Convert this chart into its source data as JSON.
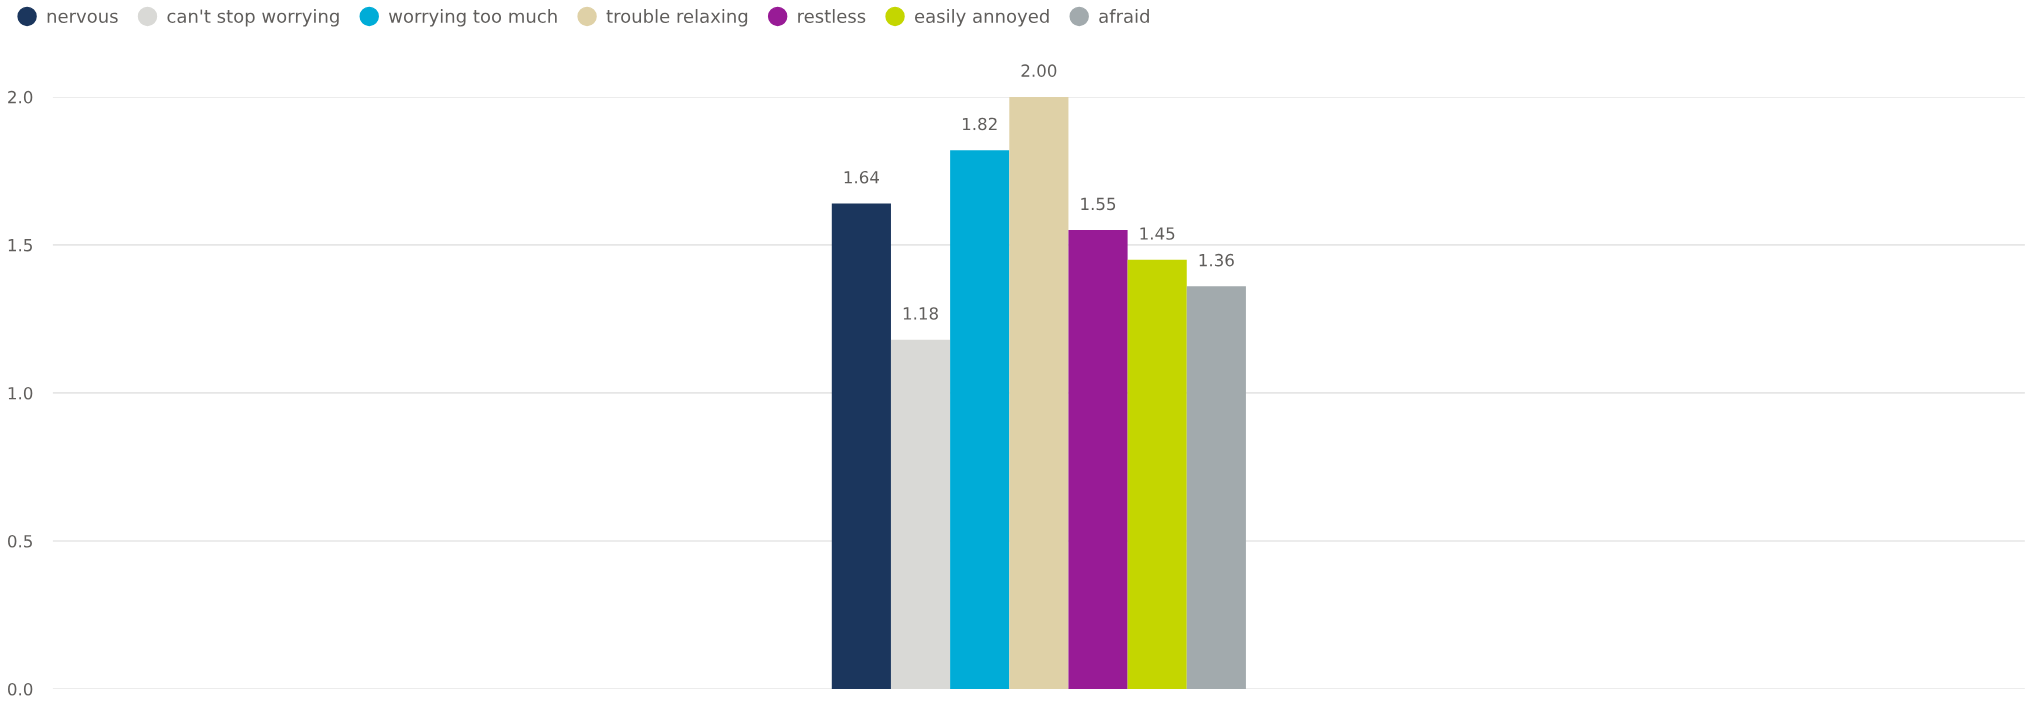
{
  "chart_data": {
    "type": "bar",
    "categories": [
      null
    ],
    "series": [
      {
        "name": "nervous",
        "color": "#1b365d",
        "values": [
          1.64
        ],
        "value_labels": [
          "1.64"
        ]
      },
      {
        "name": "can't stop worrying",
        "color": "#d9d9d6",
        "values": [
          1.18
        ],
        "value_labels": [
          "1.18"
        ]
      },
      {
        "name": "worrying too much",
        "color": "#00acd7",
        "values": [
          1.82
        ],
        "value_labels": [
          "1.82"
        ]
      },
      {
        "name": "trouble relaxing",
        "color": "#dfd1a7",
        "values": [
          2.0
        ],
        "value_labels": [
          "2.00"
        ]
      },
      {
        "name": "restless",
        "color": "#981b96",
        "values": [
          1.55
        ],
        "value_labels": [
          "1.55"
        ]
      },
      {
        "name": "easily annoyed",
        "color": "#c4d600",
        "values": [
          1.45
        ],
        "value_labels": [
          "1.45"
        ]
      },
      {
        "name": "afraid",
        "color": "#a2aaad",
        "values": [
          1.36
        ],
        "value_labels": [
          "1.36"
        ]
      }
    ],
    "ylim": [
      0,
      2
    ],
    "yticks": [
      {
        "value": 0,
        "label": "0.0"
      },
      {
        "value": 0.5,
        "label": "0.5"
      },
      {
        "value": 1,
        "label": "1.0"
      },
      {
        "value": 1.5,
        "label": "1.5"
      },
      {
        "value": 2,
        "label": "2.0"
      }
    ],
    "grid": "y",
    "legend": "top left"
  }
}
